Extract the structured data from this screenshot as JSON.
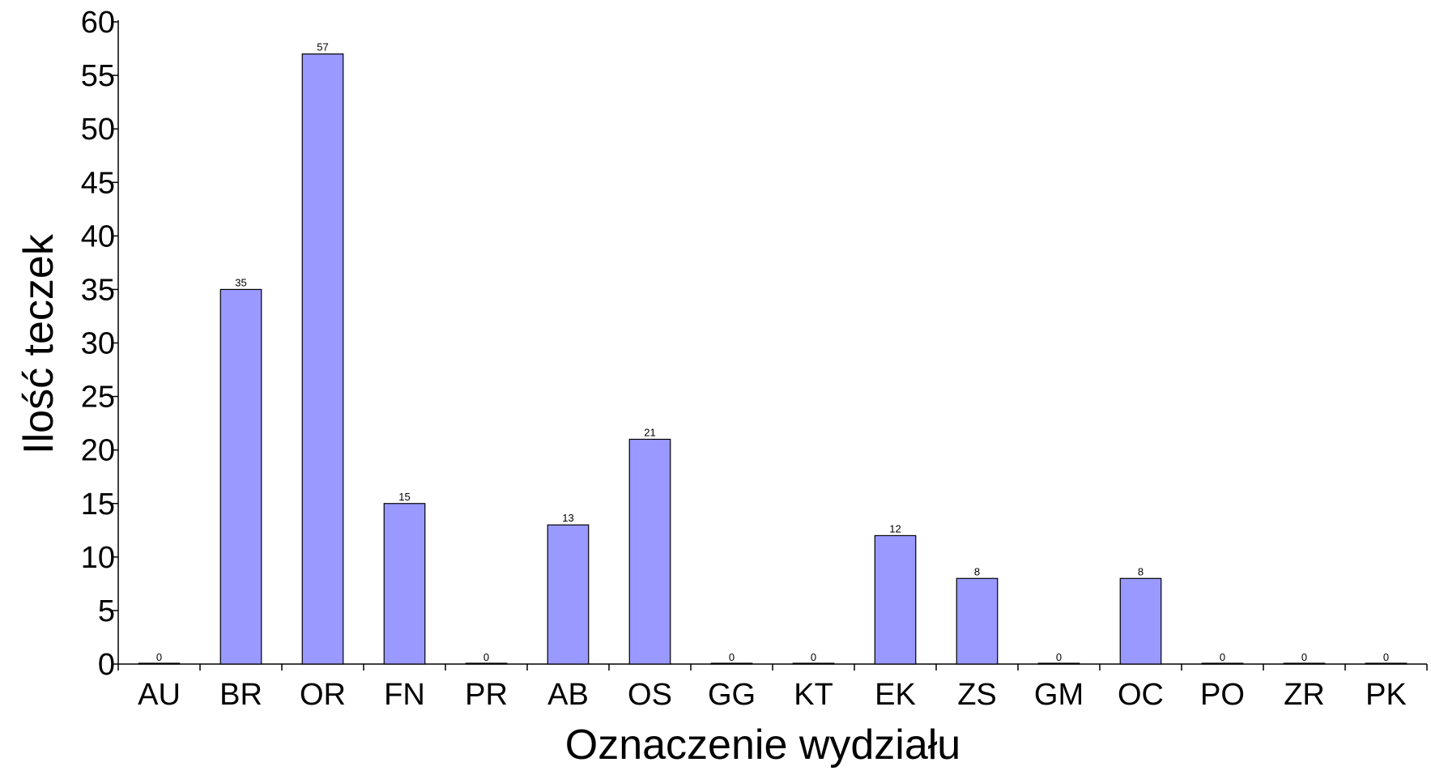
{
  "chart_data": {
    "type": "bar",
    "title": "",
    "xlabel": "Oznaczenie wydziału",
    "ylabel": "Ilość teczek",
    "categories": [
      "AU",
      "BR",
      "OR",
      "FN",
      "PR",
      "AB",
      "OS",
      "GG",
      "KT",
      "EK",
      "ZS",
      "GM",
      "OC",
      "PO",
      "ZR",
      "PK"
    ],
    "series": [
      {
        "values": [
          0,
          35,
          57,
          15,
          0,
          13,
          21,
          0,
          0,
          12,
          8,
          0,
          8,
          0,
          0,
          0
        ],
        "color": "#9999ff"
      }
    ],
    "ylim": [
      0,
      60
    ],
    "yticks": [
      0,
      5,
      10,
      15,
      20,
      25,
      30,
      35,
      40,
      45,
      50,
      55,
      60
    ],
    "grid": false,
    "legend": "none",
    "data_labels": true
  }
}
